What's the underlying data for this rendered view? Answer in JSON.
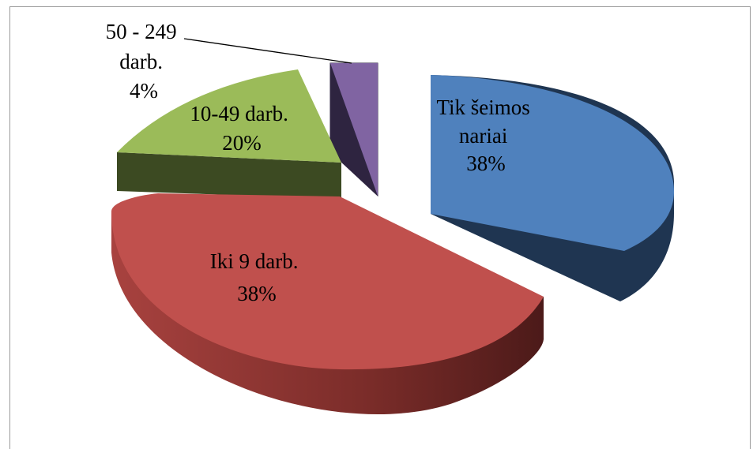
{
  "chart_data": {
    "type": "pie",
    "slices": [
      {
        "label_lines": [
          "Tik šeimos",
          "nariai",
          "38%"
        ],
        "value": 38,
        "color": "#4f81bd",
        "side_color": "#1f3551"
      },
      {
        "label_lines": [
          "Iki 9 darb.",
          "38%"
        ],
        "value": 38,
        "color": "#c0504d",
        "side_color": "#6e2321"
      },
      {
        "label_lines": [
          "10-49 darb.",
          "20%"
        ],
        "value": 20,
        "color": "#9bbb59",
        "side_color": "#3c4a22"
      },
      {
        "label_lines": [
          "50 - 249",
          "darb.",
          "4%"
        ],
        "value": 4,
        "color": "#8064a2",
        "side_color": "#2e2440"
      }
    ]
  }
}
